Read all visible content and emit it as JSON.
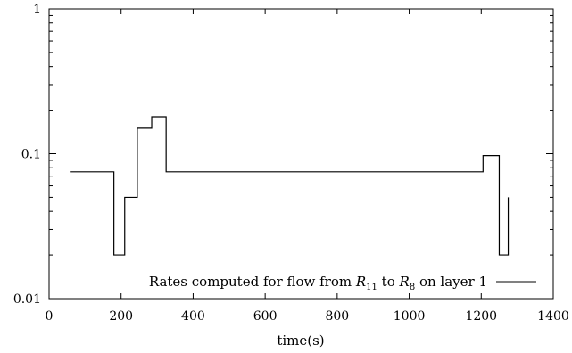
{
  "chart_data": {
    "type": "line",
    "title": "",
    "xlabel": "time(s)",
    "ylabel": "",
    "xlim": [
      0,
      1400
    ],
    "ylim": [
      0.01,
      1
    ],
    "yscale": "log",
    "grid": false,
    "legend_position": "bottom-right",
    "x_ticks": [
      0,
      200,
      400,
      600,
      800,
      1000,
      1200,
      1400
    ],
    "x_tick_labels": [
      "0",
      "200",
      "400",
      "600",
      "800",
      "1000",
      "1200",
      "1400"
    ],
    "y_ticks": [
      0.01,
      0.1,
      1
    ],
    "y_tick_labels": [
      "0.01",
      "0.1",
      "1"
    ],
    "series": [
      {
        "name": "Rates computed for flow from R11 to R8 on layer 1",
        "name_parts": {
          "prefix": "Rates computed for flow from ",
          "r1": "R",
          "r1_sub": "11",
          "middle": " to ",
          "r2": "R",
          "r2_sub": "8",
          "suffix": " on layer 1"
        },
        "color": "#000000",
        "step": true,
        "x": [
          60,
          180,
          180,
          210,
          210,
          245,
          245,
          285,
          285,
          325,
          325,
          1205,
          1205,
          1250,
          1250,
          1275,
          1275
        ],
        "y": [
          0.075,
          0.075,
          0.02,
          0.02,
          0.05,
          0.05,
          0.15,
          0.15,
          0.18,
          0.18,
          0.075,
          0.075,
          0.097,
          0.097,
          0.02,
          0.02,
          0.05
        ]
      }
    ]
  }
}
